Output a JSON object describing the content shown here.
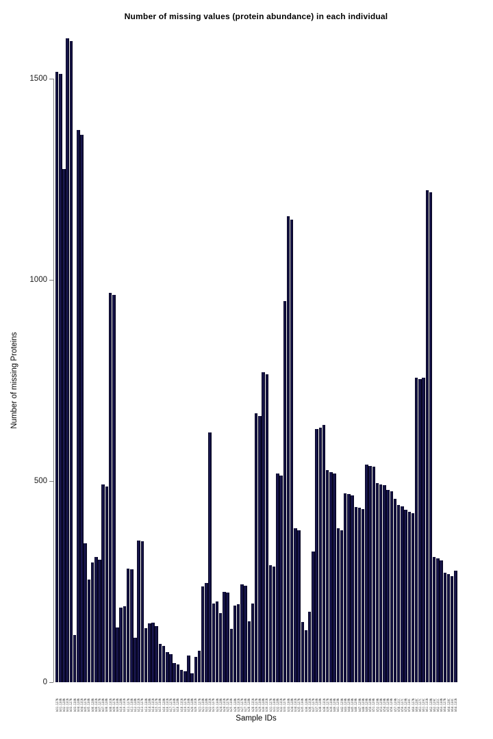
{
  "chart_data": {
    "type": "bar",
    "title": "Number of missing values (protein abundance) in each individual",
    "xlabel": "Sample IDs",
    "ylabel": "Number of missing Proteins",
    "yticks": [
      0,
      500,
      1000,
      1500
    ],
    "y_tick_labels": [
      "0",
      "500",
      "1000",
      "1500"
    ],
    "ylim": [
      0,
      1609
    ],
    "grid": false,
    "legend": "none",
    "bar_color": "#151347",
    "bar_border_color": "#06051f",
    "categories": [
      "b01.127N",
      "b01.130N",
      "b02.128N",
      "b02.131N",
      "b03.127N",
      "b03.130N",
      "b04.128N",
      "b04.131N",
      "b05.127N",
      "b05.130N",
      "b06.128N",
      "b06.131N",
      "b07.127N",
      "b07.130N",
      "b08.128N",
      "b08.131N",
      "b09.127N",
      "b09.130N",
      "b10.128N",
      "b10.131N",
      "b11.127N",
      "b11.130N",
      "b12.128N",
      "b12.131N",
      "b13.127N",
      "b13.130N",
      "b14.128N",
      "b14.131N",
      "b15.127N",
      "b15.130N",
      "b16.128N",
      "b16.131N",
      "b17.127N",
      "b17.130N",
      "b18.128N",
      "b18.131N",
      "b19.127N",
      "b19.130N",
      "b20.128N",
      "b20.131N",
      "b21.127N",
      "b21.130N",
      "b22.128N",
      "b22.131N",
      "b23.127N",
      "b23.130N",
      "b24.128N",
      "b24.131N",
      "b25.127N",
      "b25.130N",
      "b26.128N",
      "b26.131N",
      "b27.127N",
      "b27.130N",
      "b28.128N",
      "b28.131N",
      "b29.127N",
      "b29.130N",
      "b30.128N",
      "b30.131N",
      "b31.127N",
      "b31.130N",
      "b32.128N",
      "b32.131N",
      "b33.127N",
      "b33.130N",
      "b34.128N",
      "b34.131N",
      "b35.127N",
      "b35.130N",
      "b36.128N",
      "b36.131N",
      "b37.127N",
      "b37.130N",
      "b38.128N",
      "b38.131N",
      "b39.127N",
      "b39.130N",
      "b40.129N",
      "b41.129N",
      "b42.129N",
      "b43.129N",
      "b44.129N",
      "b45.129N",
      "b46.129N",
      "b47.129N",
      "b48.129N",
      "b49.129N",
      "b50.129N",
      "b51.129N",
      "b52.129N",
      "b53.129N",
      "b54.129N",
      "b55.129N",
      "b56.129N",
      "b57.129N",
      "b58.131C",
      "b59.127C",
      "b59.129N",
      "b59.130C",
      "b60.127N",
      "b60.128C",
      "b61.127C",
      "b61.129C",
      "b61.131N",
      "b62.128N",
      "b62.129C",
      "b62.131C",
      "b63.130N",
      "b64.127N",
      "b64.128C",
      "b64.130C",
      "b64.131N"
    ],
    "values": [
      1517,
      1512,
      1275,
      1600,
      1593,
      118,
      1372,
      1360,
      345,
      255,
      298,
      312,
      305,
      492,
      487,
      968,
      962,
      136,
      185,
      188,
      282,
      280,
      111,
      352,
      350,
      134,
      146,
      148,
      140,
      96,
      90,
      75,
      70,
      48,
      45,
      30,
      28,
      66,
      22,
      63,
      78,
      238,
      246,
      620,
      196,
      200,
      172,
      225,
      222,
      133,
      190,
      194,
      243,
      240,
      152,
      195,
      668,
      662,
      770,
      765,
      290,
      288,
      518,
      513,
      948,
      1158,
      1150,
      382,
      378,
      150,
      130,
      176,
      325,
      630,
      632,
      640,
      528,
      522,
      518,
      382,
      378,
      470,
      467,
      464,
      436,
      434,
      431,
      540,
      538,
      535,
      495,
      492,
      489,
      478,
      475,
      456,
      440,
      437,
      428,
      424,
      420,
      756,
      754,
      757,
      1222,
      1218,
      312,
      307,
      302,
      272,
      268,
      264,
      278
    ]
  }
}
